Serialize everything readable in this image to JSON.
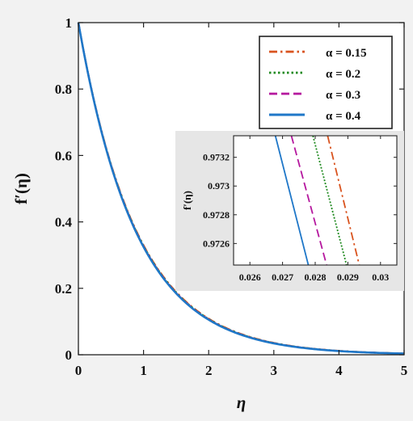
{
  "chart_data": [
    {
      "id": "main",
      "type": "line",
      "xlabel": "η",
      "ylabel": "f′(η)",
      "xlim": [
        0,
        5
      ],
      "ylim": [
        0,
        1
      ],
      "x_ticks": [
        "0",
        "1",
        "2",
        "3",
        "4",
        "5"
      ],
      "y_ticks": [
        "0",
        "0.2",
        "0.4",
        "0.6",
        "0.8",
        "1"
      ],
      "grid": false,
      "legend_position": "top-right",
      "series": [
        {
          "name": "α = 0.15",
          "color": "#d9531e",
          "style": "dashdot",
          "decay_rate": 1.11
        },
        {
          "name": "α = 0.2",
          "color": "#1f8a1f",
          "style": "dotted",
          "decay_rate": 1.115
        },
        {
          "name": "α = 0.3",
          "color": "#b5179e",
          "style": "dashed",
          "decay_rate": 1.12
        },
        {
          "name": "α = 0.4",
          "color": "#1f77c8",
          "style": "solid",
          "decay_rate": 1.125
        }
      ]
    },
    {
      "id": "inset",
      "type": "line",
      "xlabel": "",
      "ylabel": "f′(η)",
      "xlim": [
        0.0255,
        0.0305
      ],
      "ylim": [
        0.97245,
        0.97335
      ],
      "x_ticks": [
        "0.026",
        "0.027",
        "0.028",
        "0.029",
        "0.03"
      ],
      "y_ticks": [
        "0.9726",
        "0.9728",
        "0.973",
        "0.9732"
      ],
      "grid": false,
      "series": [
        {
          "name": "α = 0.4",
          "color": "#1f77c8",
          "style": "solid",
          "points": [
            [
              0.02678,
              0.97335
            ],
            [
              0.02779,
              0.97245
            ]
          ]
        },
        {
          "name": "α = 0.3",
          "color": "#b5179e",
          "style": "dashed",
          "points": [
            [
              0.02727,
              0.97335
            ],
            [
              0.02835,
              0.97245
            ]
          ]
        },
        {
          "name": "α = 0.2",
          "color": "#1f8a1f",
          "style": "dotted",
          "points": [
            [
              0.02793,
              0.97335
            ],
            [
              0.02896,
              0.97245
            ]
          ]
        },
        {
          "name": "α = 0.15",
          "color": "#d9531e",
          "style": "dashdot",
          "points": [
            [
              0.02838,
              0.97335
            ],
            [
              0.02935,
              0.97245
            ]
          ]
        }
      ]
    }
  ]
}
